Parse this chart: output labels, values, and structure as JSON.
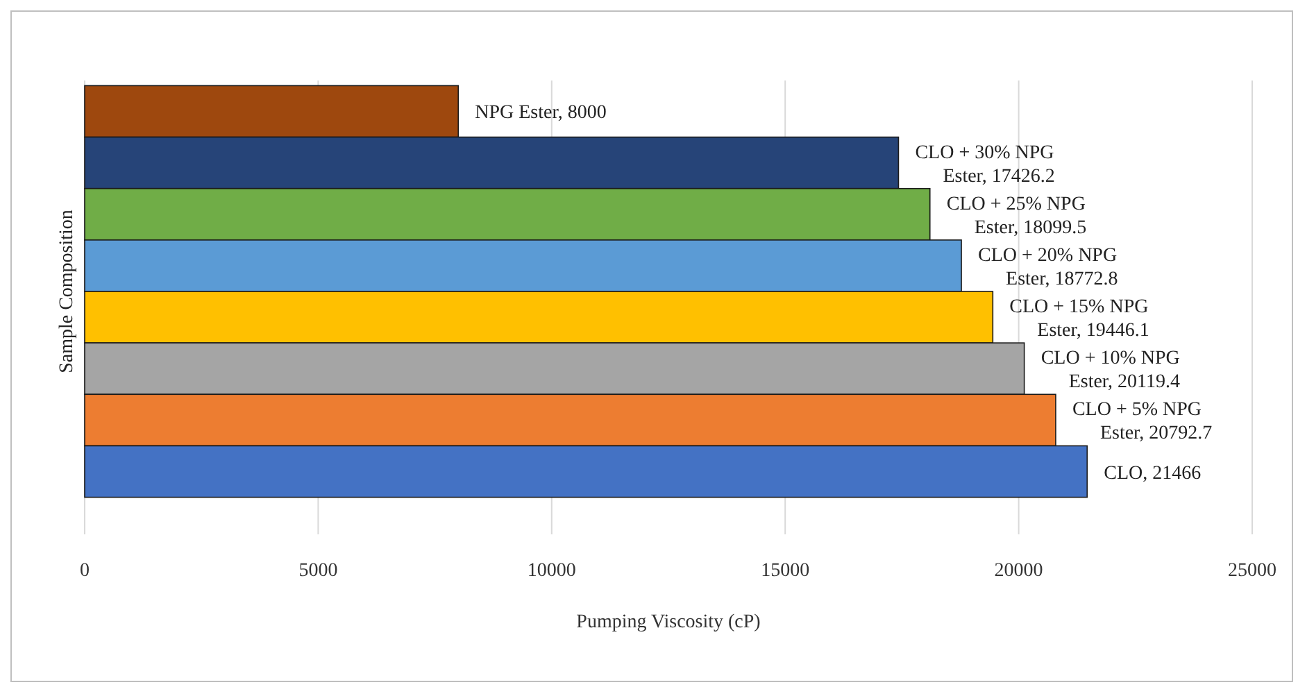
{
  "chart_data": {
    "type": "bar",
    "orientation": "horizontal",
    "xlabel": "Pumping Viscosity (cP)",
    "ylabel": "Sample Composition",
    "categories": [
      null,
      null,
      null,
      null,
      null,
      null,
      null,
      null
    ],
    "values": [
      8000,
      17426.2,
      18099.5,
      18772.8,
      19446.1,
      20119.4,
      20792.7,
      21466
    ],
    "value_labels": [
      "NPG Ester, 8000",
      "CLO + 30% NPG Ester, 17426.2",
      "CLO + 25% NPG Ester, 18099.5",
      "CLO + 20% NPG Ester, 18772.8",
      "CLO + 15% NPG Ester, 19446.1",
      "CLO + 10% NPG Ester, 20119.4",
      "CLO + 5% NPG Ester, 20792.7",
      "CLO, 21466"
    ],
    "colors": [
      "#9e480e",
      "#264478",
      "#70ad47",
      "#5b9bd5",
      "#ffc000",
      "#a5a5a5",
      "#ed7d31",
      "#4472c4"
    ],
    "xlim": [
      0,
      25000
    ],
    "xticks": [
      0,
      5000,
      10000,
      15000,
      20000,
      25000
    ],
    "grid": "x"
  }
}
